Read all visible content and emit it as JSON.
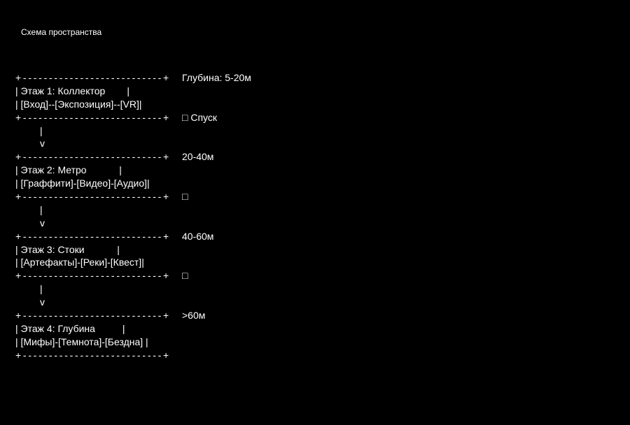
{
  "title": "Схема пространства",
  "rows": [
    {
      "left": "+---------------------------+",
      "right": "Глубина: 5-20м",
      "border": true
    },
    {
      "left": "| Этаж 1: Коллектор        |",
      "right": ""
    },
    {
      "left": "| [Вход]--[Экспозиция]--[VR]|",
      "right": ""
    },
    {
      "left": "+---------------------------+",
      "right": "□ Спуск",
      "border": true
    },
    {
      "left": "         |",
      "right": ""
    },
    {
      "left": "         v",
      "right": ""
    },
    {
      "left": "+---------------------------+",
      "right": "20-40м",
      "border": true
    },
    {
      "left": "| Этаж 2: Метро            |",
      "right": ""
    },
    {
      "left": "| [Граффити]-[Видео]-[Аудио]|",
      "right": ""
    },
    {
      "left": "+---------------------------+",
      "right": "□",
      "border": true
    },
    {
      "left": "         |",
      "right": ""
    },
    {
      "left": "         v",
      "right": ""
    },
    {
      "left": "+---------------------------+",
      "right": "40-60м",
      "border": true
    },
    {
      "left": "| Этаж 3: Стоки            |",
      "right": ""
    },
    {
      "left": "| [Артефакты]-[Реки]-[Квест]|",
      "right": ""
    },
    {
      "left": "+---------------------------+",
      "right": "□",
      "border": true
    },
    {
      "left": "         |",
      "right": ""
    },
    {
      "left": "         v",
      "right": ""
    },
    {
      "left": "+---------------------------+",
      "right": ">60м",
      "border": true
    },
    {
      "left": "| Этаж 4: Глубина          |",
      "right": ""
    },
    {
      "left": "| [Мифы]-[Темнота]-[Бездна] |",
      "right": ""
    },
    {
      "left": "+---------------------------+",
      "right": "",
      "border": true
    }
  ]
}
